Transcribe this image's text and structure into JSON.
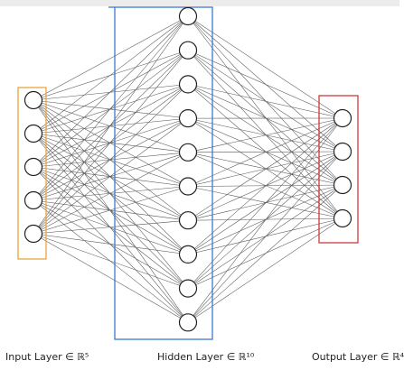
{
  "layers": [
    {
      "id": "input",
      "size": 5,
      "label": "Input Layer ∈ ℝ⁵",
      "box_color": "#e8a33d"
    },
    {
      "id": "hidden",
      "size": 10,
      "label": "Hidden Layer ∈ ℝ¹⁰",
      "box_color": "#3a78d6"
    },
    {
      "id": "output",
      "size": 4,
      "label": "Output Layer ∈ ℝ⁴",
      "box_color": "#d03a3a"
    }
  ],
  "colors": {
    "edge": "#555555",
    "node_stroke": "#222222",
    "node_fill": "#ffffff"
  }
}
